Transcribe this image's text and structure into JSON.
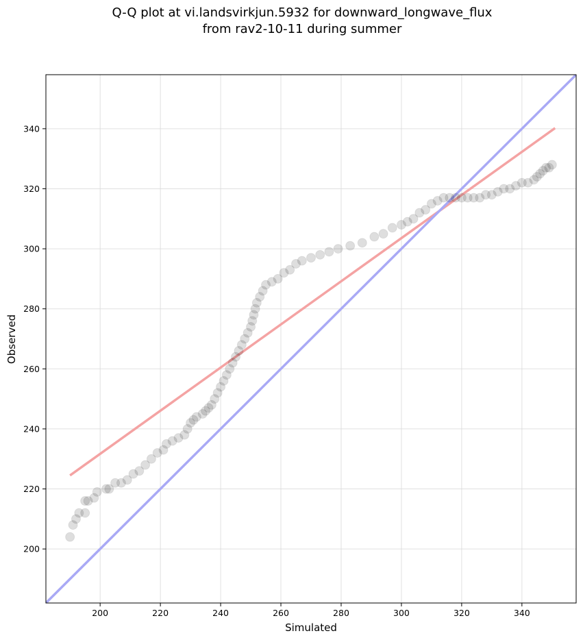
{
  "chart_data": {
    "type": "scatter",
    "title_lines": [
      "Q-Q plot at vi.landsvirkjun.5932 for downward_longwave_flux",
      "from rav2-10-11 during summer"
    ],
    "xlabel": "Simulated",
    "ylabel": "Observed",
    "xlim": [
      182,
      358
    ],
    "ylim": [
      182,
      358
    ],
    "xticks": [
      200,
      220,
      240,
      260,
      280,
      300,
      320,
      340
    ],
    "yticks": [
      200,
      220,
      240,
      260,
      280,
      300,
      320,
      340
    ],
    "grid": true,
    "series": [
      {
        "name": "quantiles",
        "kind": "points",
        "color": "#000000",
        "points": [
          [
            190,
            204
          ],
          [
            191,
            208
          ],
          [
            192,
            210
          ],
          [
            193,
            212
          ],
          [
            195,
            212
          ],
          [
            195,
            216
          ],
          [
            196,
            216
          ],
          [
            198,
            217
          ],
          [
            199,
            219
          ],
          [
            202,
            220
          ],
          [
            203,
            220
          ],
          [
            205,
            222
          ],
          [
            207,
            222
          ],
          [
            209,
            223
          ],
          [
            211,
            225
          ],
          [
            213,
            226
          ],
          [
            215,
            228
          ],
          [
            217,
            230
          ],
          [
            219,
            232
          ],
          [
            221,
            233
          ],
          [
            222,
            235
          ],
          [
            224,
            236
          ],
          [
            226,
            237
          ],
          [
            228,
            238
          ],
          [
            229,
            240
          ],
          [
            230,
            242
          ],
          [
            231,
            243
          ],
          [
            232,
            244
          ],
          [
            234,
            245
          ],
          [
            235,
            246
          ],
          [
            236,
            247
          ],
          [
            237,
            248
          ],
          [
            238,
            250
          ],
          [
            239,
            252
          ],
          [
            240,
            254
          ],
          [
            241,
            256
          ],
          [
            242,
            258
          ],
          [
            243,
            260
          ],
          [
            244,
            262
          ],
          [
            245,
            264
          ],
          [
            246,
            266
          ],
          [
            247,
            268
          ],
          [
            248,
            270
          ],
          [
            249,
            272
          ],
          [
            250,
            274
          ],
          [
            250.5,
            276
          ],
          [
            251,
            278
          ],
          [
            251.5,
            280
          ],
          [
            252,
            282
          ],
          [
            253,
            284
          ],
          [
            254,
            286
          ],
          [
            255,
            288
          ],
          [
            257,
            289
          ],
          [
            259,
            290
          ],
          [
            261,
            292
          ],
          [
            263,
            293
          ],
          [
            265,
            295
          ],
          [
            267,
            296
          ],
          [
            270,
            297
          ],
          [
            273,
            298
          ],
          [
            276,
            299
          ],
          [
            279,
            300
          ],
          [
            283,
            301
          ],
          [
            287,
            302
          ],
          [
            291,
            304
          ],
          [
            294,
            305
          ],
          [
            297,
            307
          ],
          [
            300,
            308
          ],
          [
            302,
            309
          ],
          [
            304,
            310
          ],
          [
            306,
            312
          ],
          [
            308,
            313
          ],
          [
            310,
            315
          ],
          [
            312,
            316
          ],
          [
            314,
            317
          ],
          [
            316,
            317
          ],
          [
            318,
            317
          ],
          [
            320,
            317
          ],
          [
            322,
            317
          ],
          [
            324,
            317
          ],
          [
            326,
            317
          ],
          [
            328,
            318
          ],
          [
            330,
            318
          ],
          [
            332,
            319
          ],
          [
            334,
            320
          ],
          [
            336,
            320
          ],
          [
            338,
            321
          ],
          [
            340,
            322
          ],
          [
            342,
            322
          ],
          [
            344,
            323
          ],
          [
            345,
            324
          ],
          [
            346,
            325
          ],
          [
            347,
            326
          ],
          [
            348,
            327
          ],
          [
            349,
            327
          ],
          [
            350,
            328
          ]
        ]
      },
      {
        "name": "fit-line",
        "kind": "line",
        "color": "#f4a3a3",
        "points": [
          [
            190,
            224.5
          ],
          [
            351,
            340.2
          ]
        ]
      },
      {
        "name": "identity-line",
        "kind": "line",
        "color": "#a9a9f5",
        "points": [
          [
            182,
            182
          ],
          [
            358,
            358
          ]
        ]
      }
    ]
  }
}
